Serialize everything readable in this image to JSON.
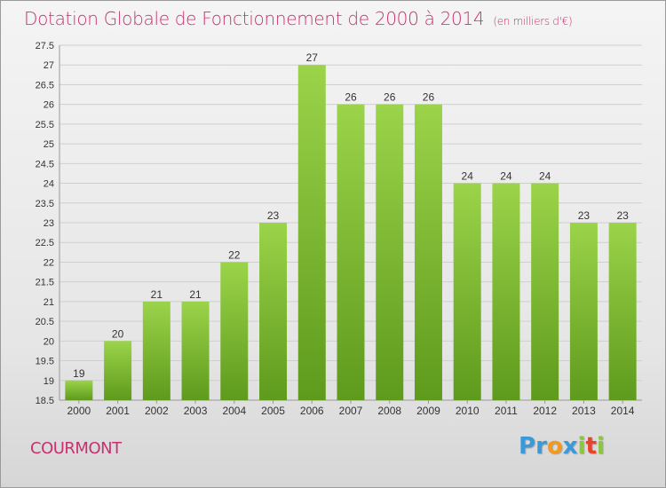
{
  "title": "Dotation Globale de Fonctionnement de 2000 à 2014",
  "subtitle": "(en milliers d'€)",
  "commune": "COURMONT",
  "logo": {
    "letters": [
      "P",
      "r",
      "o",
      "x",
      "i",
      "t",
      "i"
    ],
    "colors": [
      "#3a9ad9",
      "#3a9ad9",
      "#f39a1e",
      "#3a9ad9",
      "#8cc63f",
      "#e8432d",
      "#8cc63f"
    ]
  },
  "colors": {
    "accent": "#c8306e",
    "bar_top": "#9bd44a",
    "bar_bottom": "#5e9a1c"
  },
  "chart_data": {
    "type": "bar",
    "categories": [
      "2000",
      "2001",
      "2002",
      "2003",
      "2004",
      "2005",
      "2006",
      "2007",
      "2008",
      "2009",
      "2010",
      "2011",
      "2012",
      "2013",
      "2014"
    ],
    "values": [
      19,
      20,
      21,
      21,
      22,
      23,
      27,
      26,
      26,
      26,
      24,
      24,
      24,
      23,
      23
    ],
    "ylim": [
      18.5,
      27.5
    ],
    "yticks": [
      "18.5",
      "19",
      "19.5",
      "20",
      "20.5",
      "21",
      "21.5",
      "22",
      "22.5",
      "23",
      "23.5",
      "24",
      "24.5",
      "25",
      "25.5",
      "26",
      "26.5",
      "27",
      "27.5"
    ],
    "grid": true,
    "xlabel": "",
    "ylabel": ""
  }
}
